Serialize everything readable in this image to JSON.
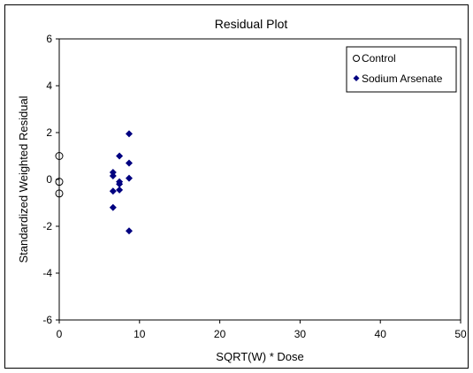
{
  "chart_data": {
    "type": "scatter",
    "title": "Residual Plot",
    "xlabel": "SQRT(W) * Dose",
    "ylabel": "Standardized Weighted Residual",
    "xlim": [
      0,
      50
    ],
    "ylim": [
      -6,
      6
    ],
    "x_ticks": [
      "0",
      "10",
      "20",
      "30",
      "40",
      "50"
    ],
    "y_ticks": [
      "6",
      "4",
      "2",
      "0",
      "-2",
      "-4",
      "-6"
    ],
    "grid": false,
    "legend_position": "top-right",
    "series": [
      {
        "name": "Control",
        "marker": "open-circle",
        "color": "#000000",
        "points": [
          {
            "x": 0,
            "y": 1.0
          },
          {
            "x": 0,
            "y": -0.1
          },
          {
            "x": 0,
            "y": -0.6
          }
        ]
      },
      {
        "name": "Sodium Arsenate",
        "marker": "diamond",
        "color": "#000080",
        "points": [
          {
            "x": 6.7,
            "y": 0.3
          },
          {
            "x": 6.7,
            "y": 0.15
          },
          {
            "x": 6.7,
            "y": -0.5
          },
          {
            "x": 6.7,
            "y": -1.2
          },
          {
            "x": 7.5,
            "y": 1.0
          },
          {
            "x": 7.5,
            "y": -0.1
          },
          {
            "x": 7.5,
            "y": -0.2
          },
          {
            "x": 7.5,
            "y": -0.45
          },
          {
            "x": 8.7,
            "y": 1.95
          },
          {
            "x": 8.7,
            "y": 0.7
          },
          {
            "x": 8.7,
            "y": 0.05
          },
          {
            "x": 8.7,
            "y": -2.2
          }
        ]
      }
    ]
  }
}
